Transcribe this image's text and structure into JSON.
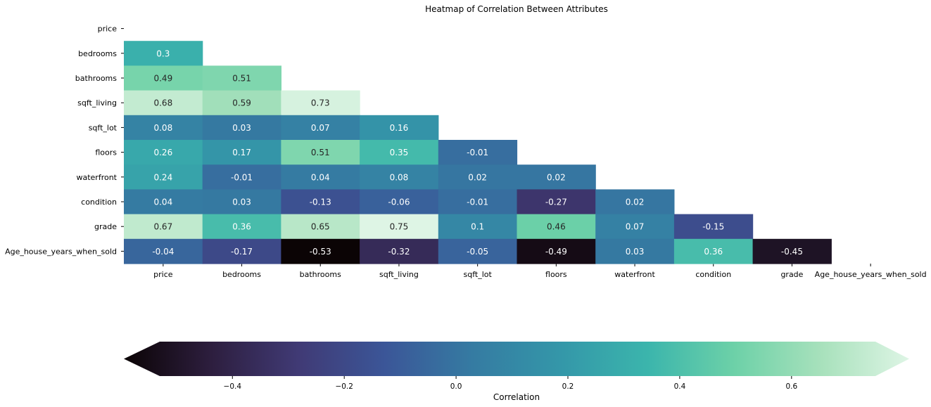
{
  "chart_data": {
    "type": "heatmap",
    "title": "Heatmap of Correlation Between Attributes",
    "row_labels": [
      "price",
      "bedrooms",
      "bathrooms",
      "sqft_living",
      "sqft_lot",
      "floors",
      "waterfront",
      "condition",
      "grade",
      "Age_house_years_when_sold"
    ],
    "col_labels": [
      "price",
      "bedrooms",
      "bathrooms",
      "sqft_living",
      "sqft_lot",
      "floors",
      "waterfront",
      "condition",
      "grade",
      "Age_house_years_when_sold"
    ],
    "mask": "upper_triangle_including_diagonal",
    "values": [
      [],
      [
        0.3
      ],
      [
        0.49,
        0.51
      ],
      [
        0.68,
        0.59,
        0.73
      ],
      [
        0.08,
        0.03,
        0.07,
        0.16
      ],
      [
        0.26,
        0.17,
        0.51,
        0.35,
        -0.01
      ],
      [
        0.24,
        -0.01,
        0.04,
        0.08,
        0.02,
        0.02
      ],
      [
        0.04,
        0.03,
        -0.13,
        -0.06,
        -0.01,
        -0.27,
        0.02
      ],
      [
        0.67,
        0.36,
        0.65,
        0.75,
        0.1,
        0.46,
        0.07,
        -0.15
      ],
      [
        -0.04,
        -0.17,
        -0.53,
        -0.32,
        -0.05,
        -0.49,
        0.03,
        0.36,
        -0.45
      ]
    ],
    "colormap": "mako",
    "colorbar": {
      "label": "Correlation",
      "orientation": "horizontal",
      "vmin": -0.53,
      "vmax": 0.75,
      "extend": "both",
      "ticks": [
        -0.4,
        -0.2,
        0.0,
        0.2,
        0.4,
        0.6
      ],
      "tick_labels": [
        "−0.4",
        "−0.2",
        "0.0",
        "0.2",
        "0.4",
        "0.6"
      ]
    },
    "colormap_stops": [
      "#0b0405",
      "#2d1e3e",
      "#403a75",
      "#3b5698",
      "#357ba2",
      "#3497a9",
      "#3bb5ac",
      "#6dd1a8",
      "#a8e1bc",
      "#def5e5"
    ]
  }
}
